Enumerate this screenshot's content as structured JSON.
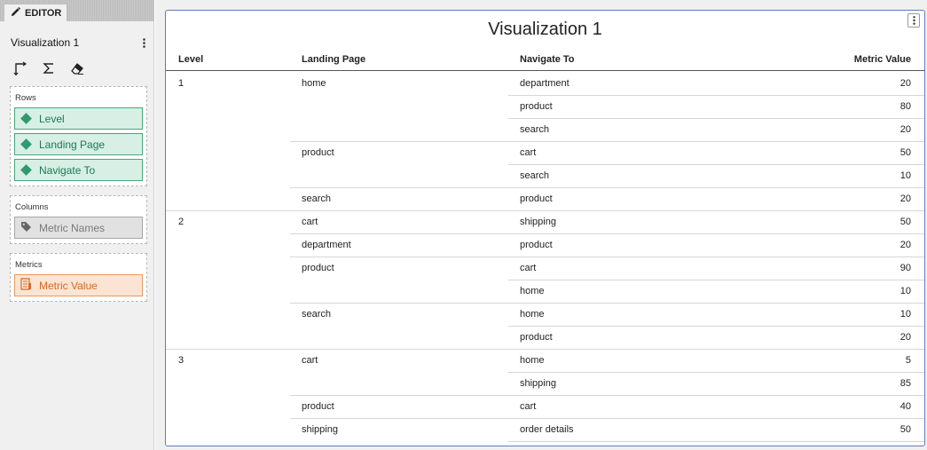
{
  "editor": {
    "tab_label": "EDITOR",
    "visualization_name": "Visualization 1",
    "tools": [
      "pivot-icon",
      "sum-icon",
      "eraser-icon"
    ],
    "rows": {
      "title": "Rows",
      "items": [
        "Level",
        "Landing Page",
        "Navigate To"
      ]
    },
    "columns": {
      "title": "Columns",
      "items": [
        "Metric Names"
      ]
    },
    "metrics": {
      "title": "Metrics",
      "items": [
        "Metric Value"
      ]
    },
    "colors": {
      "dimension_pill": "#d7efe4",
      "column_pill": "#e1e1e1",
      "metric_pill": "#fbe4d3",
      "frame_border": "#5b7fb7"
    }
  },
  "visualization": {
    "title": "Visualization 1",
    "headers": [
      "Level",
      "Landing Page",
      "Navigate To",
      "Metric Value"
    ],
    "rows": [
      [
        "1",
        "home",
        "department",
        "20"
      ],
      [
        "",
        "",
        "product",
        "80"
      ],
      [
        "",
        "",
        "search",
        "20"
      ],
      [
        "",
        "product",
        "cart",
        "50"
      ],
      [
        "",
        "",
        "search",
        "10"
      ],
      [
        "",
        "search",
        "product",
        "20"
      ],
      [
        "2",
        "cart",
        "shipping",
        "50"
      ],
      [
        "",
        "department",
        "product",
        "20"
      ],
      [
        "",
        "product",
        "cart",
        "90"
      ],
      [
        "",
        "",
        "home",
        "10"
      ],
      [
        "",
        "search",
        "home",
        "10"
      ],
      [
        "",
        "",
        "product",
        "20"
      ],
      [
        "3",
        "cart",
        "home",
        "5"
      ],
      [
        "",
        "",
        "shipping",
        "85"
      ],
      [
        "",
        "product",
        "cart",
        "40"
      ],
      [
        "",
        "shipping",
        "order details",
        "50"
      ]
    ]
  }
}
